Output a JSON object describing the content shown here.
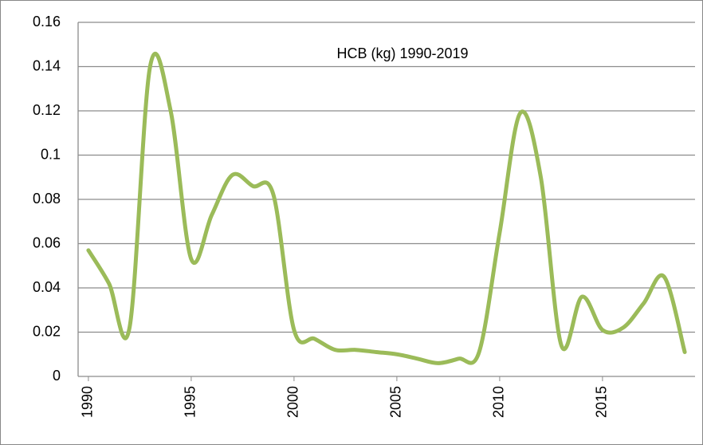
{
  "chart_data": {
    "type": "line",
    "title": "HCB  (kg) 1990-2019",
    "x": [
      1990,
      1991,
      1992,
      1993,
      1994,
      1995,
      1996,
      1997,
      1998,
      1999,
      2000,
      2001,
      2002,
      2003,
      2004,
      2005,
      2006,
      2007,
      2008,
      2009,
      2010,
      2011,
      2012,
      2013,
      2014,
      2015,
      2016,
      2017,
      2018,
      2019
    ],
    "series": [
      {
        "color": "#9bbb59",
        "values": [
          0.057,
          0.042,
          0.022,
          0.14,
          0.12,
          0.053,
          0.073,
          0.091,
          0.086,
          0.082,
          0.021,
          0.017,
          0.012,
          0.012,
          0.011,
          0.01,
          0.008,
          0.006,
          0.008,
          0.011,
          0.065,
          0.119,
          0.09,
          0.014,
          0.036,
          0.021,
          0.022,
          0.033,
          0.045,
          0.011
        ]
      }
    ],
    "xlim": [
      1989.5,
      2019.5
    ],
    "xticks": [
      1990,
      1995,
      2000,
      2005,
      2010,
      2015
    ],
    "ylim": [
      0,
      0.16
    ],
    "yticks": [
      0,
      0.02,
      0.04,
      0.06,
      0.08,
      0.1,
      0.12,
      0.14,
      0.16
    ],
    "grid": true,
    "smooth": true
  }
}
